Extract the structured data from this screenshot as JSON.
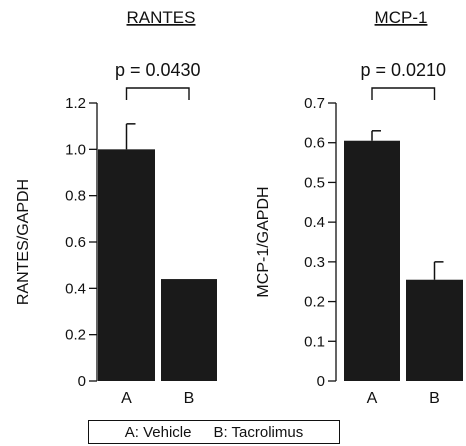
{
  "chart_data": [
    {
      "type": "bar",
      "title": "RANTES",
      "ylabel": "RANTES/GAPDH",
      "categories": [
        "A",
        "B"
      ],
      "values": [
        1.0,
        0.44
      ],
      "errors": [
        0.11,
        0.0
      ],
      "ylim": [
        0,
        1.2
      ],
      "yticks": [
        "0",
        "0.2",
        "0.4",
        "0.6",
        "0.8",
        "1.0",
        "1.2"
      ],
      "annotation": "p = 0.0430",
      "color": "#1a1a1a"
    },
    {
      "type": "bar",
      "title": "MCP-1",
      "ylabel": "MCP-1/GAPDH",
      "categories": [
        "A",
        "B"
      ],
      "values": [
        0.605,
        0.255
      ],
      "errors": [
        0.025,
        0.045
      ],
      "ylim": [
        0,
        0.7
      ],
      "yticks": [
        "0",
        "0.1",
        "0.2",
        "0.3",
        "0.4",
        "0.5",
        "0.6",
        "0.7"
      ],
      "annotation": "p = 0.0210",
      "color": "#1a1a1a"
    }
  ],
  "legend": {
    "a": "A: Vehicle",
    "b": "B: Tacrolimus"
  }
}
